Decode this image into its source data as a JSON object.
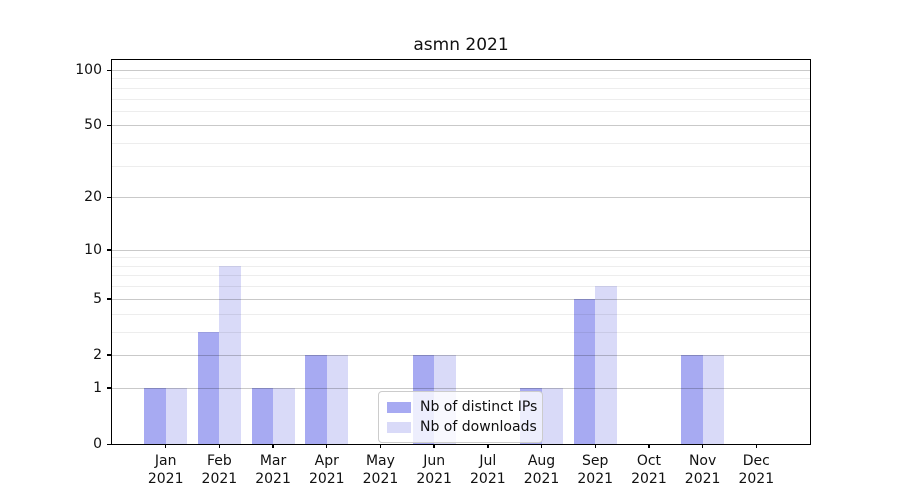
{
  "figure": {
    "title": "asmn 2021"
  },
  "chart_data": {
    "type": "bar",
    "title": "asmn 2021",
    "categories": [
      "Jan 2021",
      "Feb 2021",
      "Mar 2021",
      "Apr 2021",
      "May 2021",
      "Jun 2021",
      "Jul 2021",
      "Aug 2021",
      "Sep 2021",
      "Oct 2021",
      "Nov 2021",
      "Dec 2021"
    ],
    "x_tick_months": [
      "Jan",
      "Feb",
      "Mar",
      "Apr",
      "May",
      "Jun",
      "Jul",
      "Aug",
      "Sep",
      "Oct",
      "Nov",
      "Dec"
    ],
    "x_tick_year": "2021",
    "series": [
      {
        "name": "Nb of distinct IPs",
        "color": "#a7aaf2",
        "values": [
          1,
          3,
          1,
          2,
          0,
          2,
          0,
          1,
          5,
          0,
          2,
          0
        ]
      },
      {
        "name": "Nb of downloads",
        "color": "#d9daf8",
        "values": [
          1,
          8,
          1,
          2,
          0,
          2,
          0,
          1,
          6,
          0,
          2,
          0
        ]
      }
    ],
    "xlabel": "",
    "ylabel": "",
    "yscale": "log1p",
    "ylim": [
      0,
      112
    ],
    "yticks": [
      0,
      1,
      2,
      5,
      10,
      20,
      50,
      100
    ],
    "yticks_minor": [
      3,
      4,
      6,
      7,
      8,
      9,
      30,
      40,
      60,
      70,
      80,
      90
    ],
    "grid": true,
    "legend_position": "lower center"
  },
  "colors": {
    "spine": "#000000",
    "grid_major": "#c9c9c9",
    "grid_minor": "#ededed",
    "background": "#ffffff"
  }
}
